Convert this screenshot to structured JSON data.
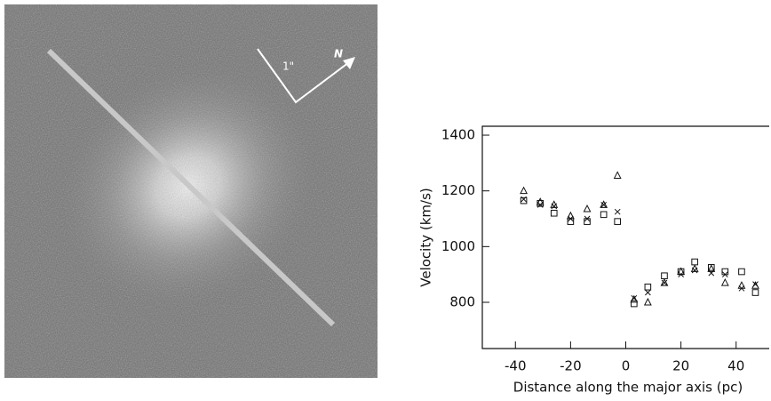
{
  "image": {
    "scale_label": "1\"",
    "north_label": "N"
  },
  "chart_data": {
    "type": "scatter",
    "y_label": "Velocity (km/s)",
    "x_label": "Distance along the major axis (pc)",
    "x": [
      -37,
      -31,
      -26,
      -20,
      -14,
      -8,
      -3,
      3,
      8,
      14,
      20,
      25,
      31,
      36,
      42,
      47
    ],
    "series": [
      {
        "marker": "triangle",
        "color": "#111111",
        "values": [
          1200,
          1160,
          1150,
          1110,
          1135,
          1150,
          1255,
          810,
          800,
          870,
          910,
          920,
          920,
          870,
          860,
          860
        ]
      },
      {
        "marker": "square",
        "color": "#111111",
        "values": [
          1165,
          1155,
          1120,
          1090,
          1090,
          1115,
          1090,
          795,
          855,
          895,
          910,
          945,
          925,
          910,
          910,
          835
        ]
      },
      {
        "marker": "cross",
        "color": "#111111",
        "values": [
          1170,
          1150,
          1145,
          1100,
          1100,
          1150,
          1125,
          815,
          835,
          870,
          900,
          915,
          905,
          900,
          850,
          865
        ]
      }
    ],
    "xlim": [
      -52,
      52
    ],
    "ylim": [
      634,
      1432
    ],
    "xticks": [
      -40,
      -20,
      0,
      20,
      40
    ],
    "yticks": [
      800,
      1000,
      1200,
      1400
    ]
  }
}
